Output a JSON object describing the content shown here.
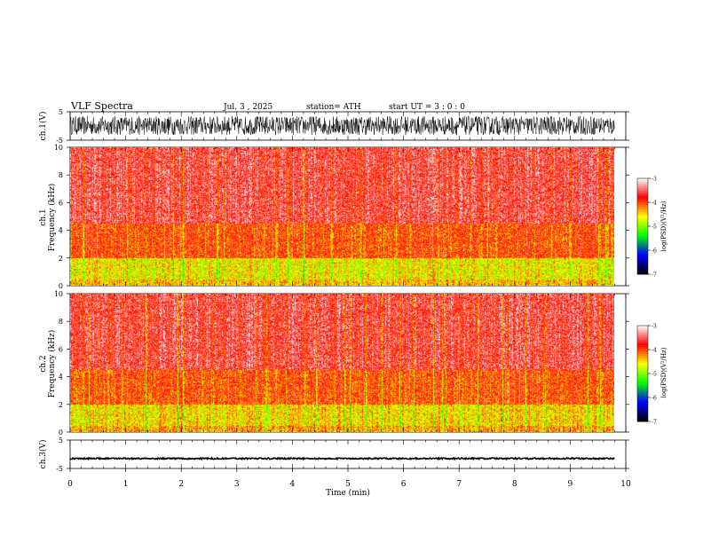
{
  "header": {
    "title": "VLF Spectra",
    "date": "Jul. 3 , 2025",
    "station": "station= ATH",
    "start_ut": "start UT = 3 : 0 : 0"
  },
  "chart_data": [
    {
      "type": "line",
      "panel": "ch1_waveform",
      "ylabel": "ch.1(V)",
      "ylim": [
        -5,
        5
      ],
      "yticks": [
        "5",
        "-5"
      ],
      "x": [
        0,
        9.8
      ],
      "trace_min": -3.2,
      "trace_max": 3.5
    },
    {
      "type": "heatmap",
      "panel": "ch1_spectrogram",
      "ylabel_channel": "ch.1",
      "ylabel": "Frequency (kHz)",
      "ylim": [
        0,
        10
      ],
      "yticks": [
        "0",
        "2",
        "4",
        "6",
        "8",
        "10"
      ],
      "x_range_min": [
        0,
        9.8
      ],
      "colorbar": {
        "label": "log(PSD)(V²/Hz)",
        "range": [
          -7,
          -3
        ],
        "ticks": [
          "-3",
          "-4",
          "-5",
          "-6",
          "-7"
        ]
      },
      "bands_khz": [
        {
          "from": 0.0,
          "to": 0.5,
          "log_psd": -4.4
        },
        {
          "from": 0.5,
          "to": 2.0,
          "log_psd": -4.6
        },
        {
          "from": 2.0,
          "to": 4.5,
          "log_psd": -4.0
        },
        {
          "from": 4.5,
          "to": 10.0,
          "log_psd": -3.6
        }
      ]
    },
    {
      "type": "heatmap",
      "panel": "ch2_spectrogram",
      "ylabel_channel": "ch.2",
      "ylabel": "Frequency (kHz)",
      "ylim": [
        0,
        10
      ],
      "yticks": [
        "0",
        "2",
        "4",
        "6",
        "8",
        "10"
      ],
      "x_range_min": [
        0,
        9.8
      ],
      "colorbar": {
        "label": "log(PSD)(V²/Hz)",
        "range": [
          -7,
          -3
        ],
        "ticks": [
          "-3",
          "-4",
          "-5",
          "-6",
          "-7"
        ]
      },
      "bands_khz": [
        {
          "from": 0.0,
          "to": 0.5,
          "log_psd": -4.3
        },
        {
          "from": 0.5,
          "to": 2.0,
          "log_psd": -4.5
        },
        {
          "from": 2.0,
          "to": 4.5,
          "log_psd": -4.0
        },
        {
          "from": 4.5,
          "to": 10.0,
          "log_psd": -3.6
        }
      ]
    },
    {
      "type": "line",
      "panel": "ch3_waveform",
      "ylabel": "ch.3(V)",
      "ylim": [
        -5,
        5
      ],
      "yticks": [
        "5",
        "-5"
      ],
      "x": [
        0,
        9.8
      ],
      "trace_level": -1.5
    }
  ],
  "xaxis": {
    "label": "Time (min)",
    "range": [
      0,
      10
    ],
    "ticks": [
      "0",
      "1",
      "2",
      "3",
      "4",
      "5",
      "6",
      "7",
      "8",
      "9",
      "10"
    ]
  },
  "colors": {
    "trace": "#000000",
    "background": "#ffffff",
    "colormap": [
      "#000000",
      "#0000ff",
      "#00ff00",
      "#ffff00",
      "#ff0000",
      "#ffffff"
    ]
  }
}
